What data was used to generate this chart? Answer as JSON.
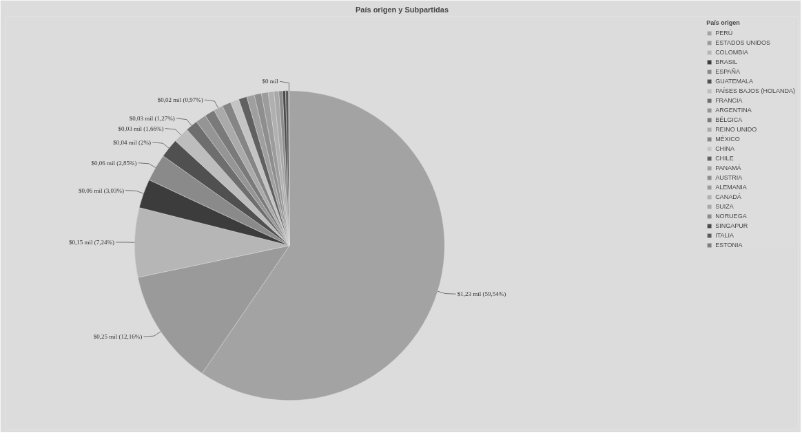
{
  "chart_data": {
    "type": "pie",
    "title": "País origen y Subpartidas",
    "legend_title": "País origen",
    "legend": "right",
    "categories": [
      "PERÚ",
      "ESTADOS UNIDOS",
      "COLOMBIA",
      "BRASIL",
      "ESPAÑA",
      "GUATEMALA",
      "PAÍSES BAJOS (HOLANDA)",
      "FRANCIA",
      "ARGENTINA",
      "BÉLGICA",
      "REINO UNIDO",
      "MÉXICO",
      "CHINA",
      "CHILE",
      "PANAMÁ",
      "AUSTRIA",
      "ALEMANIA",
      "CANADÁ",
      "SUIZA",
      "NORUEGA",
      "SINGAPUR",
      "ITALIA",
      "ESTONIA"
    ],
    "values": [
      59.54,
      12.16,
      7.24,
      3.03,
      2.85,
      2.0,
      1.66,
      1.27,
      1.1,
      1.05,
      0.97,
      0.92,
      0.9,
      0.85,
      0.8,
      0.75,
      0.7,
      0.6,
      0.5,
      0.4,
      0.3,
      0.3,
      0.11
    ],
    "colors": [
      "#a3a3a3",
      "#9a9a9a",
      "#b6b6b6",
      "#3c3c3c",
      "#8a8a8a",
      "#505050",
      "#bdbdbd",
      "#6e6e6e",
      "#959595",
      "#7a7a7a",
      "#aaaaaa",
      "#858585",
      "#c4c4c4",
      "#606060",
      "#9f9f9f",
      "#8e8e8e",
      "#9c9c9c",
      "#b0b0b0",
      "#a8a8a8",
      "#8c8c8c",
      "#4a4a4a",
      "#5a5a5a",
      "#7e7e7e"
    ],
    "value_labels": [
      "$1,23 mil (59,54%)",
      "$0,25 mil (12,16%)",
      "$0,15 mil (7,24%)",
      "$0,06 mil (3,03%)",
      "$0,06 mil (2,85%)",
      "$0,04 mil (2%)",
      "$0,03 mil (1,66%)",
      "$0,03 mil (1,27%)",
      null,
      null,
      "$0,02 mil (0,97%)",
      null,
      null,
      null,
      null,
      null,
      null,
      null,
      null,
      null,
      null,
      null,
      "$0 mil"
    ]
  }
}
